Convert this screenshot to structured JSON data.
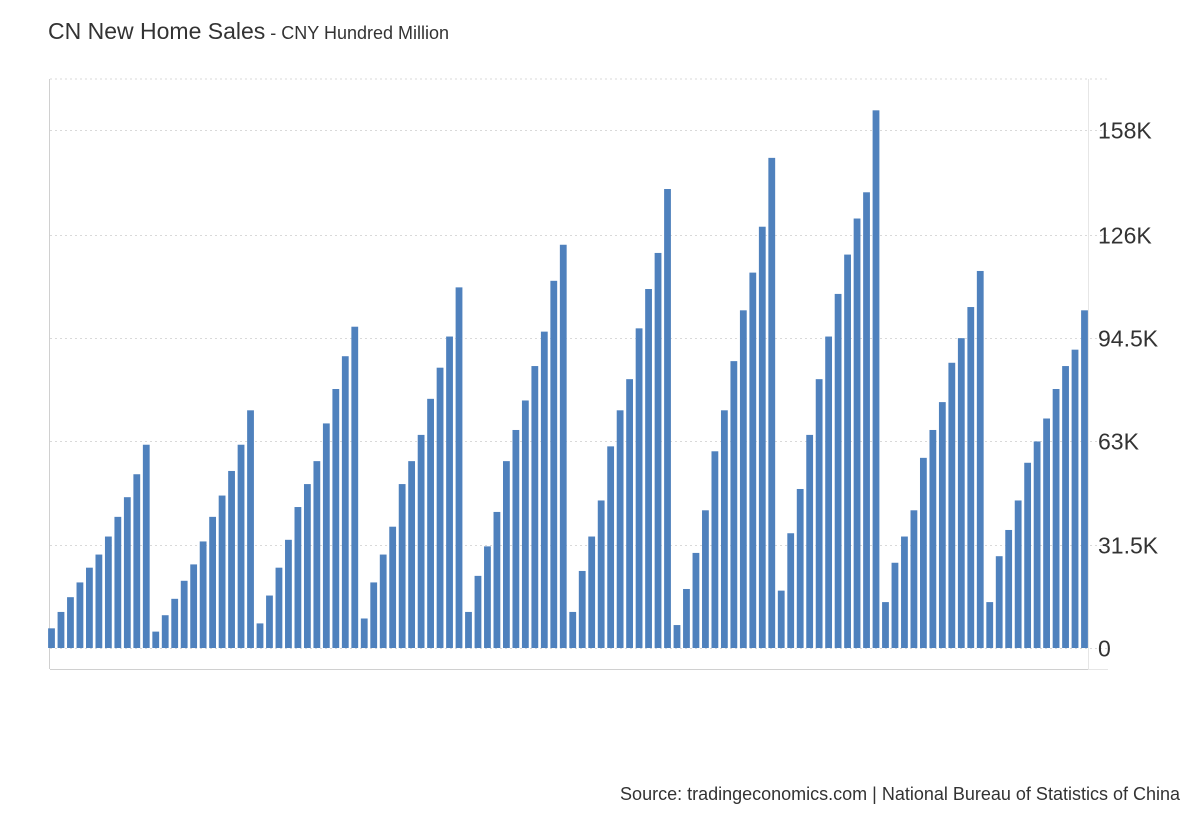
{
  "chart_data": {
    "type": "bar",
    "title": "CN New Home Sales",
    "title_separator": " - ",
    "subtitle": "CNY Hundred Million",
    "xlabel": "",
    "ylabel": "",
    "ylim": [
      0,
      175000
    ],
    "y_ticks": [
      {
        "value": 0,
        "label": "0"
      },
      {
        "value": 31500,
        "label": "31.5K"
      },
      {
        "value": 63000,
        "label": "63K"
      },
      {
        "value": 94500,
        "label": "94.5K"
      },
      {
        "value": 126000,
        "label": "126K"
      },
      {
        "value": 158000,
        "label": "158K"
      }
    ],
    "grid": true,
    "legend": "none",
    "bar_color": "#4f81bd",
    "series": [
      {
        "name": "CN New Home Sales",
        "values": [
          6000,
          11000,
          15500,
          20000,
          24500,
          28500,
          34000,
          40000,
          46000,
          53000,
          62000,
          5000,
          10000,
          15000,
          20500,
          25500,
          32500,
          40000,
          46500,
          54000,
          62000,
          72500,
          7500,
          16000,
          24500,
          33000,
          43000,
          50000,
          57000,
          68500,
          79000,
          89000,
          98000,
          9000,
          20000,
          28500,
          37000,
          50000,
          57000,
          65000,
          76000,
          85500,
          95000,
          110000,
          11000,
          22000,
          31000,
          41500,
          57000,
          66500,
          75500,
          86000,
          96500,
          112000,
          123000,
          11000,
          23500,
          34000,
          45000,
          61500,
          72500,
          82000,
          97500,
          109500,
          120500,
          140000,
          7000,
          18000,
          29000,
          42000,
          60000,
          72500,
          87500,
          103000,
          114500,
          128500,
          149500,
          17500,
          35000,
          48500,
          65000,
          82000,
          95000,
          108000,
          120000,
          131000,
          139000,
          164000,
          14000,
          26000,
          34000,
          42000,
          58000,
          66500,
          75000,
          87000,
          94500,
          104000,
          115000,
          14000,
          28000,
          36000,
          45000,
          56500,
          63000,
          70000,
          79000,
          86000,
          91000,
          103000
        ]
      }
    ],
    "source": "Source: tradingeconomics.com | National Bureau of Statistics of China"
  }
}
